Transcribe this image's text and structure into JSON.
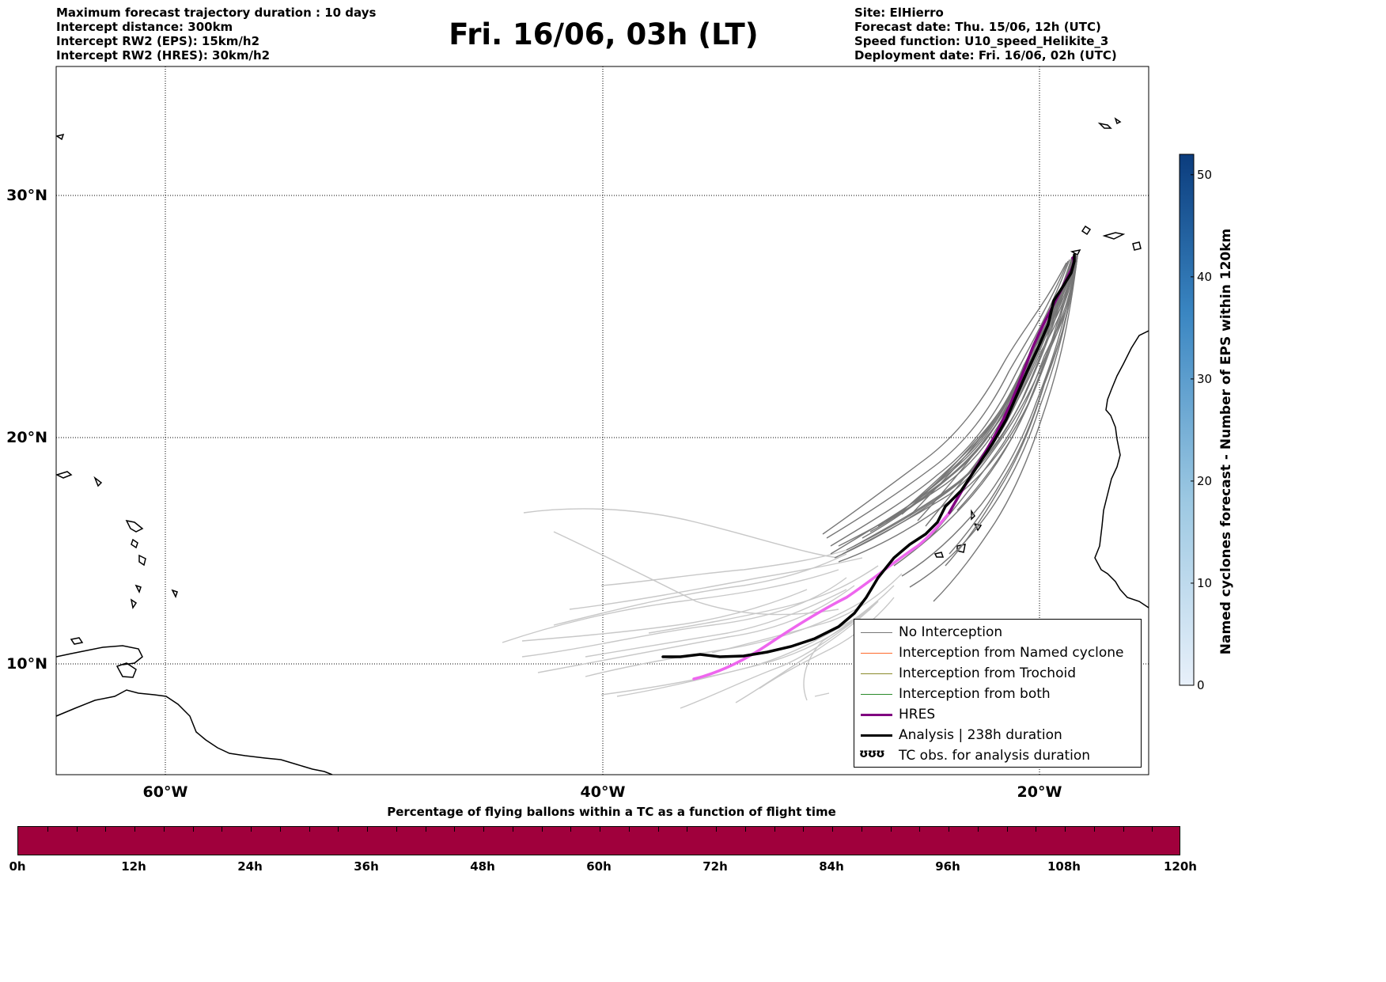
{
  "header_left": [
    "Maximum forecast trajectory duration : 10 days",
    "Intercept distance: 300km",
    "Intercept RW2 (EPS):  15km/h2",
    "Intercept RW2 (HRES): 30km/h2"
  ],
  "title": "Fri. 16/06, 03h (LT)",
  "header_right": [
    "Site: ElHierro",
    "Forecast date: Thu. 15/06, 12h (UTC)",
    "Speed function: U10_speed_Helikite_3",
    "Deployment date: Fri. 16/06, 02h (UTC)"
  ],
  "map": {
    "lat_labels": [
      "30°N",
      "20°N",
      "10°N"
    ],
    "lon_labels": [
      "60°W",
      "40°W",
      "20°W"
    ],
    "colors": {
      "no_interception": "#777777",
      "no_interception_light": "#c8c8c8",
      "named_cyclone": "#ff6a2b",
      "trochoid": "#8a8a2a",
      "both": "#2a8a2a",
      "hres": "#800080",
      "hres_light": "#ee66ee",
      "analysis": "#000000"
    }
  },
  "legend": {
    "items": [
      {
        "label": "No Interception",
        "color": "#777777",
        "width": 1
      },
      {
        "label": "Interception from Named cyclone",
        "color": "#ff6a2b",
        "width": 1
      },
      {
        "label": "Interception from Trochoid",
        "color": "#8a8a2a",
        "width": 1
      },
      {
        "label": "Interception from both",
        "color": "#2a8a2a",
        "width": 1
      },
      {
        "label": "HRES",
        "color": "#800080",
        "width": 3
      },
      {
        "label": "Analysis | 238h duration",
        "color": "#000000",
        "width": 3
      }
    ],
    "tc_symbol": "ʊʊʊ",
    "tc_label": "TC obs. for analysis duration"
  },
  "colorbar": {
    "label": "Named cyclones forecast - Number of EPS within 120km",
    "ticks": [
      "0",
      "10",
      "20",
      "30",
      "40",
      "50"
    ],
    "min": 0,
    "max": 52,
    "color_low": "#e8f0fa",
    "color_high": "#0b3c7d"
  },
  "bottom": {
    "title": "Percentage of flying ballons within a TC as a function of flight time",
    "bar_color": "#a0003c",
    "ticks": [
      "0h",
      "12h",
      "24h",
      "36h",
      "48h",
      "60h",
      "72h",
      "84h",
      "96h",
      "108h",
      "120h"
    ]
  }
}
